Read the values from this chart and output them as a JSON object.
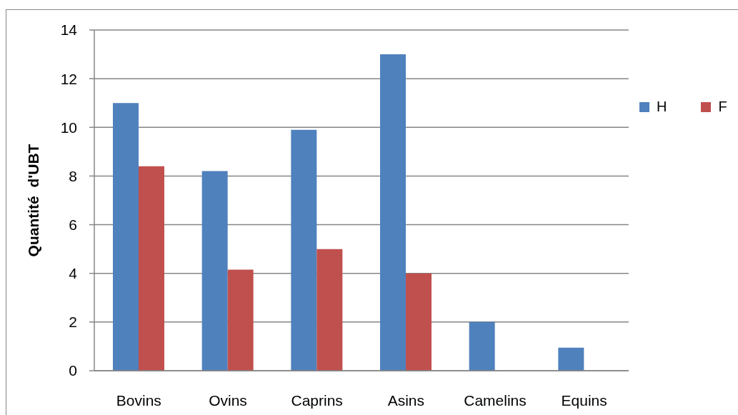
{
  "chart_data": {
    "type": "bar",
    "ylabel": "Quantité  d'UBT",
    "categories": [
      "Bovins",
      "Ovins",
      "Caprins",
      "Asins",
      "Camelins",
      "Equins"
    ],
    "series": [
      {
        "name": "H",
        "color": "#4f81bd",
        "values": [
          11,
          8.2,
          9.9,
          13,
          2,
          0.95
        ]
      },
      {
        "name": "F",
        "color": "#c0504d",
        "values": [
          8.4,
          4.15,
          5,
          4,
          null,
          null
        ]
      }
    ],
    "ylim": [
      0,
      14
    ],
    "yticks": [
      0,
      2,
      4,
      6,
      8,
      10,
      12,
      14
    ],
    "grid": "y",
    "legend": "right"
  }
}
